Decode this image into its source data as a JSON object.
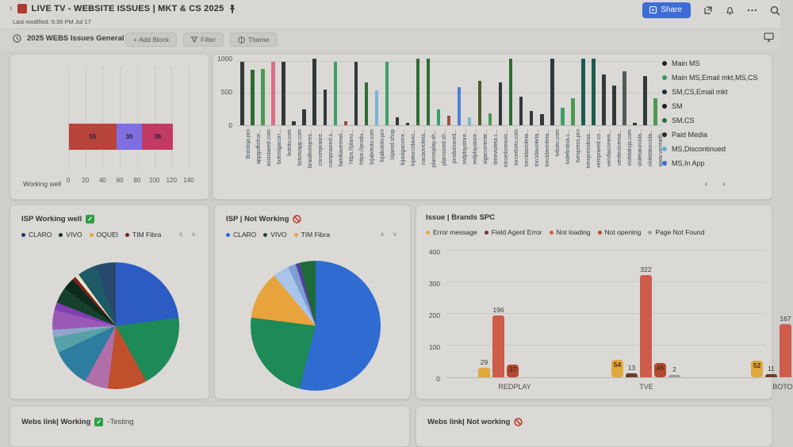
{
  "titlebar": {
    "breadcrumb_chevron": "›",
    "title": "LIVE TV - WEBSITE ISSUES | MKT & CS 2025",
    "last_modified": "Last modified: 5:35 PM Jul 17",
    "share_label": "Share"
  },
  "toolbar": {
    "view_title": "2025 WEBS Issues General (...",
    "add_block_label": "+ Add Block",
    "filter_label": "Filter",
    "theme_label": "Theme"
  },
  "colors": {
    "accent_blue": "#3d6bd8",
    "check_green": "#2f9e44",
    "blocked_red": "#c0392b"
  },
  "bottom": {
    "working_title": "Webs link| Working",
    "working_suffix": "-Testing",
    "not_working_title": "Webs link| Not working"
  },
  "chart_data": [
    {
      "id": "working_well",
      "type": "bar",
      "variant": "stacked-horizontal",
      "category": "Working well",
      "segments": [
        {
          "value": 55,
          "color": "#b9443c"
        },
        {
          "value": 30,
          "color": "#7f6fe0"
        },
        {
          "value": 36,
          "color": "#c23a64"
        }
      ],
      "xticks": [
        0,
        20,
        40,
        60,
        80,
        100,
        120,
        140
      ],
      "xlim": [
        0,
        140
      ],
      "grid": true
    },
    {
      "id": "website_issues",
      "type": "bar",
      "variant": "vertical",
      "yticks": [
        0,
        500,
        1000
      ],
      "ylim": [
        0,
        1050
      ],
      "legend_position": "right",
      "legend": [
        {
          "label": "Main MS",
          "color": "#1f1f1f"
        },
        {
          "label": "Main MS,Email mkt,MS,CS",
          "color": "#3a9a5c"
        },
        {
          "label": "SM,CS,Email mkt",
          "color": "#1f2a3a"
        },
        {
          "label": "SM",
          "color": "#1f1f1f"
        },
        {
          "label": "SM,CS",
          "color": "#2a6b3f"
        },
        {
          "label": "Paid Media",
          "color": "#2a2a2a"
        },
        {
          "label": "MS,Discontinued",
          "color": "#5ab4d8"
        },
        {
          "label": "MS,In App",
          "color": "#3a6bd4"
        }
      ],
      "legend_pager": "‹ ›",
      "bars": [
        {
          "label": "Botoloja.pro",
          "value": 1000,
          "color": "#33383a"
        },
        {
          "label": "appgolfinhor...",
          "value": 870,
          "color": "#2e6b34"
        },
        {
          "label": "assistared.com",
          "value": 890,
          "color": "#4c9a52"
        },
        {
          "label": "botosigacorr...",
          "value": 1000,
          "color": "#e06c8a"
        },
        {
          "label": "bototv.com",
          "value": 1000,
          "color": "#33383a"
        },
        {
          "label": "bototvapp.com",
          "value": 60,
          "color": "#33383a"
        },
        {
          "label": "brasiltvexpres...",
          "value": 250,
          "color": "#33383a"
        },
        {
          "label": "cocomprasre...",
          "value": 1050,
          "color": "#33383a"
        },
        {
          "label": "comprasred.s...",
          "value": 560,
          "color": "#33383a"
        },
        {
          "label": "familiavermel...",
          "value": 1000,
          "color": "#3aa06a"
        },
        {
          "label": "https://plano...",
          "value": 60,
          "color": "#a04a42"
        },
        {
          "label": "https://produ...",
          "value": 1000,
          "color": "#33383a"
        },
        {
          "label": "lojabototv.com",
          "value": 670,
          "color": "#2e6b34"
        },
        {
          "label": "lojabototv.pro",
          "value": 550,
          "color": "#7ab4d8"
        },
        {
          "label": "lojared.shop",
          "value": 1000,
          "color": "#3aa06a"
        },
        {
          "label": "lojasigacorre...",
          "value": 120,
          "color": "#33383a"
        },
        {
          "label": "lojatorcidavio...",
          "value": 40,
          "color": "#33383a"
        },
        {
          "label": "nacaovioleta...",
          "value": 1050,
          "color": "#2e6b34"
        },
        {
          "label": "planosplay.sh...",
          "value": 1050,
          "color": "#2e6b34"
        },
        {
          "label": "planosred.sh...",
          "value": 250,
          "color": "#3aa06a"
        },
        {
          "label": "produtosred...",
          "value": 150,
          "color": "#a04a42"
        },
        {
          "label": "redplaystore...",
          "value": 600,
          "color": "#4a7fd4"
        },
        {
          "label": "redplaystore...",
          "value": 120,
          "color": "#7ab4d8"
        },
        {
          "label": "sigacorrente...",
          "value": 700,
          "color": "#4a5a2e"
        },
        {
          "label": "timevioleta.c...",
          "value": 190,
          "color": "#4c9a52"
        },
        {
          "label": "torcedoresvio...",
          "value": 680,
          "color": "#33383a"
        },
        {
          "label": "torcedortv.com",
          "value": 1050,
          "color": "#2e6b34"
        },
        {
          "label": "torcidavioleta...",
          "value": 450,
          "color": "#33383a"
        },
        {
          "label": "torcidavioleta...",
          "value": 230,
          "color": "#33383a"
        },
        {
          "label": "torcidavioleta...",
          "value": 180,
          "color": "#33383a"
        },
        {
          "label": "tvboto.com",
          "value": 1050,
          "color": "#33383a"
        },
        {
          "label": "tvdefinitiva.c...",
          "value": 280,
          "color": "#3aa06a"
        },
        {
          "label": "tvexpress.pro",
          "value": 420,
          "color": "#4c9a52"
        },
        {
          "label": "tvexpressbras...",
          "value": 1050,
          "color": "#1e5a50"
        },
        {
          "label": "vemprared.co...",
          "value": 1050,
          "color": "#1e5a50"
        },
        {
          "label": "vendascinem...",
          "value": 800,
          "color": "#33383a"
        },
        {
          "label": "verdecinema...",
          "value": 620,
          "color": "#33383a"
        },
        {
          "label": "violetaloja.com",
          "value": 850,
          "color": "#555a5a"
        },
        {
          "label": "violetatorcida...",
          "value": 40,
          "color": "#33383a"
        },
        {
          "label": "violetatorcida...",
          "value": 780,
          "color": "#33383a"
        },
        {
          "label": "www.vermelh...",
          "value": 430,
          "color": "#4c9a52"
        }
      ]
    },
    {
      "id": "isp_working",
      "type": "pie",
      "title": "ISP Working well",
      "status_icon": "check",
      "legend": [
        {
          "label": "CLARO",
          "color": "#1f3a7a"
        },
        {
          "label": "VIVO",
          "color": "#173a2a"
        },
        {
          "label": "OQUEI",
          "color": "#e8a33d"
        },
        {
          "label": "TIM Fibra",
          "color": "#7a1f1f"
        }
      ],
      "slices": [
        {
          "color": "#2d5bc4",
          "value": 23
        },
        {
          "color": "#1d8a57",
          "value": 19
        },
        {
          "color": "#c04f2c",
          "value": 10
        },
        {
          "color": "#b06fa8",
          "value": 6
        },
        {
          "color": "#2c7da0",
          "value": 10
        },
        {
          "color": "#57a0a8",
          "value": 4
        },
        {
          "color": "#8ea6c8",
          "value": 2
        },
        {
          "color": "#9b59b6",
          "value": 5
        },
        {
          "color": "#7d3fb2",
          "value": 2
        },
        {
          "color": "#15402a",
          "value": 4
        },
        {
          "color": "#0c2b1c",
          "value": 3
        },
        {
          "color": "#7a1f1f",
          "value": 1
        },
        {
          "color": "#e8e4c9",
          "value": 1
        },
        {
          "color": "#1d5a66",
          "value": 5
        },
        {
          "color": "#27496d",
          "value": 5
        }
      ]
    },
    {
      "id": "isp_not_working",
      "type": "pie",
      "title": "ISP | Not Working",
      "status_icon": "blocked",
      "legend": [
        {
          "label": "CLARO",
          "color": "#2f6bd0"
        },
        {
          "label": "VIVO",
          "color": "#1d4a33"
        },
        {
          "label": "TIM Fibra",
          "color": "#e8a33d"
        }
      ],
      "slices": [
        {
          "color": "#2f6bd0",
          "value": 54
        },
        {
          "color": "#1d8a57",
          "value": 23
        },
        {
          "color": "#e8a33d",
          "value": 12
        },
        {
          "color": "#a8c4e8",
          "value": 4
        },
        {
          "color": "#7d9fd4",
          "value": 2
        },
        {
          "color": "#5a3fa0",
          "value": 1
        },
        {
          "color": "#1d6b3a",
          "value": 4
        }
      ]
    },
    {
      "id": "issue_brands",
      "type": "bar",
      "variant": "grouped",
      "title": "Issue | Brands SPC",
      "yticks": [
        0,
        100,
        200,
        300,
        400
      ],
      "ylim": [
        0,
        400
      ],
      "categories": [
        "REDPLAY",
        "TVE",
        "BOTO"
      ],
      "legend": [
        {
          "label": "Error message",
          "color": "#e0a93f"
        },
        {
          "label": "Field Agent Error",
          "color": "#6e3b2a"
        },
        {
          "label": "Not loading",
          "color": "#cd5c4a"
        },
        {
          "label": "Not opening",
          "color": "#b24a30"
        },
        {
          "label": "Page Not Found",
          "color": "#9aa0a0"
        }
      ],
      "series": [
        {
          "name": "Error message",
          "values": [
            29,
            54,
            52
          ]
        },
        {
          "name": "Field Agent Error",
          "values": [
            null,
            13,
            11
          ]
        },
        {
          "name": "Not loading",
          "values": [
            196,
            322,
            167
          ]
        },
        {
          "name": "Not opening",
          "values": [
            37,
            45,
            null
          ]
        },
        {
          "name": "Page Not Found",
          "values": [
            null,
            2,
            null
          ]
        }
      ],
      "groups": [
        {
          "label": "REDPLAY",
          "x": 40,
          "label_x": 86,
          "bars": [
            {
              "v": 29,
              "c": "#e0a93f",
              "badge": false
            },
            {
              "v": 196,
              "c": "#cd5c4a",
              "badge": false
            },
            {
              "v": 37,
              "c": "#b24a30",
              "badge": true
            }
          ]
        },
        {
          "label": "TVE",
          "x": 208,
          "label_x": 252,
          "bars": [
            {
              "v": 54,
              "c": "#e0a93f",
              "badge": true
            },
            {
              "v": 13,
              "c": "#6e3b2a",
              "badge": false
            },
            {
              "v": 322,
              "c": "#cd5c4a",
              "badge": false
            },
            {
              "v": 45,
              "c": "#b24a30",
              "badge": true
            },
            {
              "v": 2,
              "c": "#9aa0a0",
              "badge": false
            }
          ]
        },
        {
          "label": "BOTO",
          "x": 384,
          "label_x": 424,
          "bars": [
            {
              "v": 52,
              "c": "#e0a93f",
              "badge": true
            },
            {
              "v": 11,
              "c": "#6e3b2a",
              "badge": false
            },
            {
              "v": 167,
              "c": "#cd5c4a",
              "badge": false
            }
          ]
        }
      ]
    }
  ]
}
